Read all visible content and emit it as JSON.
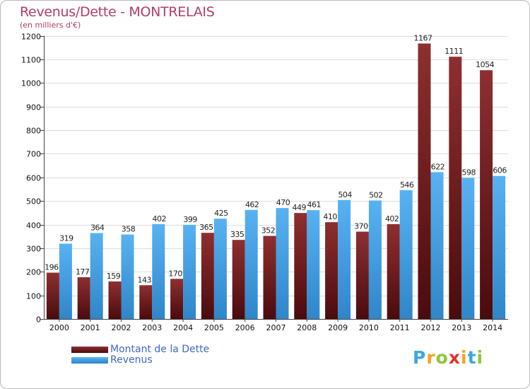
{
  "header": {
    "title": "Revenus/Dette - MONTRELAIS",
    "unit": "(en milliers d'€)"
  },
  "chart_data": {
    "type": "bar",
    "categories": [
      "2000",
      "2001",
      "2002",
      "2003",
      "2004",
      "2005",
      "2006",
      "2007",
      "2008",
      "2009",
      "2010",
      "2011",
      "2012",
      "2013",
      "2014"
    ],
    "series": [
      {
        "name": "Montant de la Dette",
        "color": "#7a1f22",
        "values": [
          196,
          177,
          159,
          143,
          170,
          365,
          335,
          352,
          449,
          410,
          370,
          402,
          1167,
          1111,
          1054
        ]
      },
      {
        "name": "Revenus",
        "color": "#4aa3e8",
        "values": [
          319,
          364,
          358,
          402,
          399,
          425,
          462,
          470,
          461,
          504,
          502,
          546,
          622,
          598,
          606
        ]
      }
    ],
    "ylim": [
      0,
      1200
    ],
    "yticks": [
      0,
      100,
      200,
      300,
      400,
      500,
      600,
      700,
      800,
      900,
      1000,
      1100,
      1200
    ],
    "grid": true,
    "legend": "bottom-left"
  },
  "legend": {
    "items": [
      {
        "label": "Montant de la Dette",
        "color": "#7a1f22"
      },
      {
        "label": "Revenus",
        "color": "#4aa3e8"
      }
    ]
  },
  "logo": {
    "letters": [
      "P",
      "r",
      "o",
      "x",
      "i",
      "t",
      "i"
    ],
    "colors": [
      "#3aa8dc",
      "#f5a21b",
      "#8cc63f",
      "#e0342f",
      "#f5a21b",
      "#3aa8dc",
      "#8cc63f"
    ]
  }
}
